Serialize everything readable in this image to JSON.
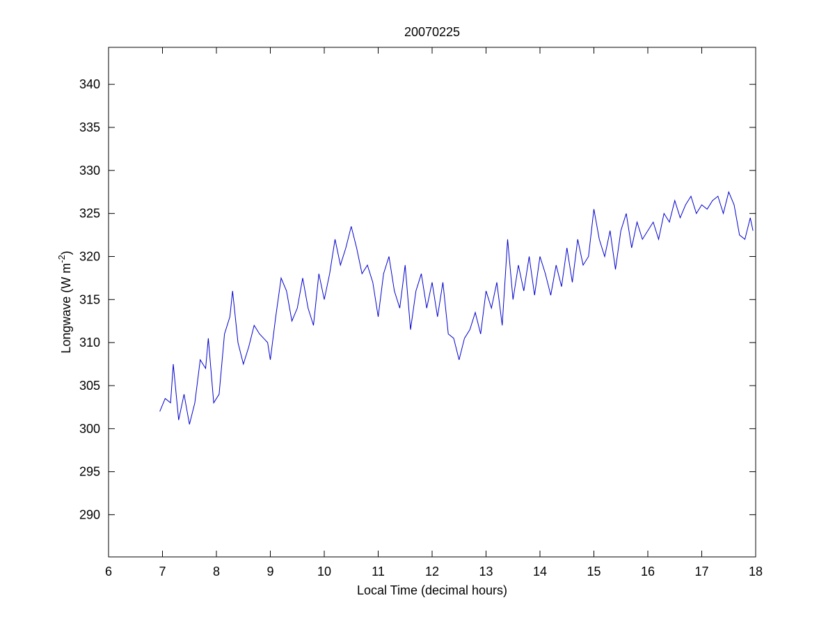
{
  "chart_data": {
    "type": "line",
    "title": "20070225",
    "xlabel": "Local Time (decimal hours)",
    "ylabel_parts": [
      "Longwave (W m",
      "-2",
      ")"
    ],
    "x": [
      6.95,
      7.05,
      7.15,
      7.2,
      7.3,
      7.4,
      7.5,
      7.6,
      7.7,
      7.8,
      7.85,
      7.95,
      8.05,
      8.15,
      8.25,
      8.3,
      8.4,
      8.5,
      8.6,
      8.7,
      8.8,
      8.95,
      9.0,
      9.1,
      9.2,
      9.3,
      9.4,
      9.5,
      9.6,
      9.7,
      9.8,
      9.9,
      10.0,
      10.1,
      10.2,
      10.3,
      10.4,
      10.5,
      10.6,
      10.7,
      10.8,
      10.9,
      11.0,
      11.1,
      11.2,
      11.3,
      11.4,
      11.5,
      11.6,
      11.7,
      11.8,
      11.9,
      12.0,
      12.1,
      12.2,
      12.3,
      12.4,
      12.5,
      12.6,
      12.7,
      12.8,
      12.9,
      13.0,
      13.1,
      13.2,
      13.3,
      13.4,
      13.5,
      13.6,
      13.7,
      13.8,
      13.9,
      14.0,
      14.1,
      14.2,
      14.3,
      14.4,
      14.5,
      14.6,
      14.7,
      14.8,
      14.9,
      15.0,
      15.1,
      15.2,
      15.3,
      15.4,
      15.5,
      15.6,
      15.7,
      15.8,
      15.9,
      16.0,
      16.1,
      16.2,
      16.3,
      16.4,
      16.5,
      16.6,
      16.7,
      16.8,
      16.9,
      17.0,
      17.1,
      17.2,
      17.3,
      17.4,
      17.5,
      17.6,
      17.7,
      17.8,
      17.9,
      17.95
    ],
    "series": [
      {
        "color": "#0000cc",
        "values": [
          302,
          303.5,
          303,
          307.5,
          301,
          304,
          300.5,
          303,
          308,
          307,
          310.5,
          303,
          304,
          311,
          313,
          316,
          310,
          307.5,
          309.5,
          312,
          311,
          310,
          308,
          313,
          317.5,
          316,
          312.5,
          314,
          317.5,
          314,
          312,
          318,
          315,
          318,
          322,
          319,
          321,
          323.5,
          321,
          318,
          319,
          317,
          313,
          318,
          320,
          316,
          314,
          319,
          311.5,
          316,
          318,
          314,
          317,
          313,
          317,
          311,
          310.5,
          308,
          310.5,
          311.5,
          313.5,
          311,
          316,
          314,
          317,
          312,
          322,
          315,
          319,
          316,
          320,
          315.5,
          320,
          318,
          315.5,
          319,
          316.5,
          321,
          317,
          322,
          319,
          320,
          325.5,
          322,
          320,
          323,
          318.5,
          323,
          325,
          321,
          324,
          322,
          323,
          324,
          322,
          325,
          324,
          326.5,
          324.5,
          326,
          327,
          325,
          326,
          325.5,
          326.5,
          327,
          325,
          327.5,
          326,
          322.5,
          322,
          324.5,
          323
        ]
      }
    ],
    "xlim": [
      6,
      18
    ],
    "xticks": [
      6,
      7,
      8,
      9,
      10,
      11,
      12,
      13,
      14,
      15,
      16,
      17,
      18
    ],
    "ylim": [
      285.1,
      344.3
    ],
    "yticks": [
      290,
      295,
      300,
      305,
      310,
      315,
      320,
      325,
      330,
      335,
      340
    ]
  }
}
